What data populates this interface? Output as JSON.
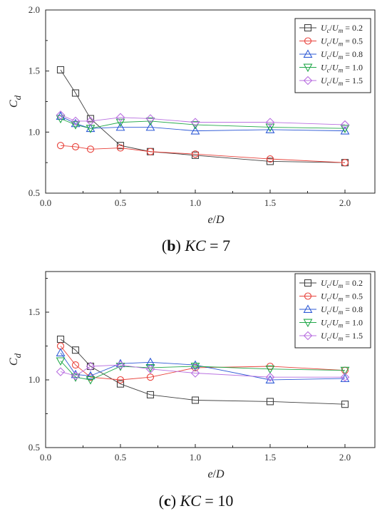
{
  "chart_data": [
    {
      "type": "line",
      "caption": {
        "letter": "b",
        "var": "KC",
        "eq": " = 7"
      },
      "xlabel": {
        "main": "e",
        "rest": "/",
        "main2": "D"
      },
      "ylabel": {
        "main": "C",
        "sub": "d"
      },
      "xlim": [
        0.0,
        2.2
      ],
      "ylim": [
        0.5,
        2.0
      ],
      "xticks": [
        "0.0",
        "0.5",
        "1.0",
        "1.5",
        "2.0"
      ],
      "yticks": [
        "0.5",
        "1.0",
        "1.5",
        "2.0"
      ],
      "legend_position": "top-right",
      "x": [
        0.1,
        0.2,
        0.3,
        0.5,
        0.7,
        1.0,
        1.5,
        2.0
      ],
      "series": [
        {
          "name": "Uc/Um = 0.2",
          "ratio": "0.2",
          "marker": "square",
          "color": "#404040",
          "values": [
            1.51,
            1.32,
            1.11,
            0.89,
            0.84,
            0.81,
            0.76,
            0.75
          ]
        },
        {
          "name": "Uc/Um = 0.5",
          "ratio": "0.5",
          "marker": "circle",
          "color": "#e8413a",
          "values": [
            0.89,
            0.88,
            0.86,
            0.87,
            0.84,
            0.82,
            0.78,
            0.75
          ]
        },
        {
          "name": "Uc/Um = 0.8",
          "ratio": "0.8",
          "marker": "triangle-up",
          "color": "#2f5bd6",
          "values": [
            1.13,
            1.07,
            1.03,
            1.04,
            1.04,
            1.01,
            1.02,
            1.01
          ]
        },
        {
          "name": "Uc/Um = 1.0",
          "ratio": "1.0",
          "marker": "triangle-down",
          "color": "#22a84a",
          "values": [
            1.11,
            1.06,
            1.03,
            1.08,
            1.09,
            1.06,
            1.04,
            1.03
          ]
        },
        {
          "name": "Uc/Um = 1.5",
          "ratio": "1.5",
          "marker": "diamond",
          "color": "#b86fe0",
          "values": [
            1.14,
            1.09,
            1.09,
            1.12,
            1.11,
            1.08,
            1.08,
            1.06
          ]
        }
      ]
    },
    {
      "type": "line",
      "caption": {
        "letter": "c",
        "var": "KC",
        "eq": " = 10"
      },
      "xlabel": {
        "main": "e",
        "rest": "/",
        "main2": "D"
      },
      "ylabel": {
        "main": "C",
        "sub": "d"
      },
      "xlim": [
        0.0,
        2.2
      ],
      "ylim": [
        0.5,
        1.8
      ],
      "xticks": [
        "0.0",
        "0.5",
        "1.0",
        "1.5",
        "2.0"
      ],
      "yticks": [
        "0.5",
        "1.0",
        "1.5"
      ],
      "legend_position": "top-right",
      "x": [
        0.1,
        0.2,
        0.3,
        0.5,
        0.7,
        1.0,
        1.5,
        2.0
      ],
      "series": [
        {
          "name": "Uc/Um = 0.2",
          "ratio": "0.2",
          "marker": "square",
          "color": "#404040",
          "values": [
            1.3,
            1.22,
            1.1,
            0.97,
            0.89,
            0.85,
            0.84,
            0.82
          ]
        },
        {
          "name": "Uc/Um = 0.5",
          "ratio": "0.5",
          "marker": "circle",
          "color": "#e8413a",
          "values": [
            1.25,
            1.11,
            1.02,
            1.0,
            1.02,
            1.09,
            1.1,
            1.07
          ]
        },
        {
          "name": "Uc/Um = 0.8",
          "ratio": "0.8",
          "marker": "triangle-up",
          "color": "#2f5bd6",
          "values": [
            1.2,
            1.04,
            1.03,
            1.12,
            1.13,
            1.11,
            1.0,
            1.01
          ]
        },
        {
          "name": "Uc/Um = 1.0",
          "ratio": "1.0",
          "marker": "triangle-down",
          "color": "#22a84a",
          "values": [
            1.14,
            1.02,
            1.0,
            1.1,
            1.09,
            1.1,
            1.08,
            1.07
          ]
        },
        {
          "name": "Uc/Um = 1.5",
          "ratio": "1.5",
          "marker": "diamond",
          "color": "#b86fe0",
          "values": [
            1.06,
            1.03,
            1.1,
            1.11,
            1.08,
            1.05,
            1.02,
            1.02
          ]
        }
      ]
    }
  ]
}
